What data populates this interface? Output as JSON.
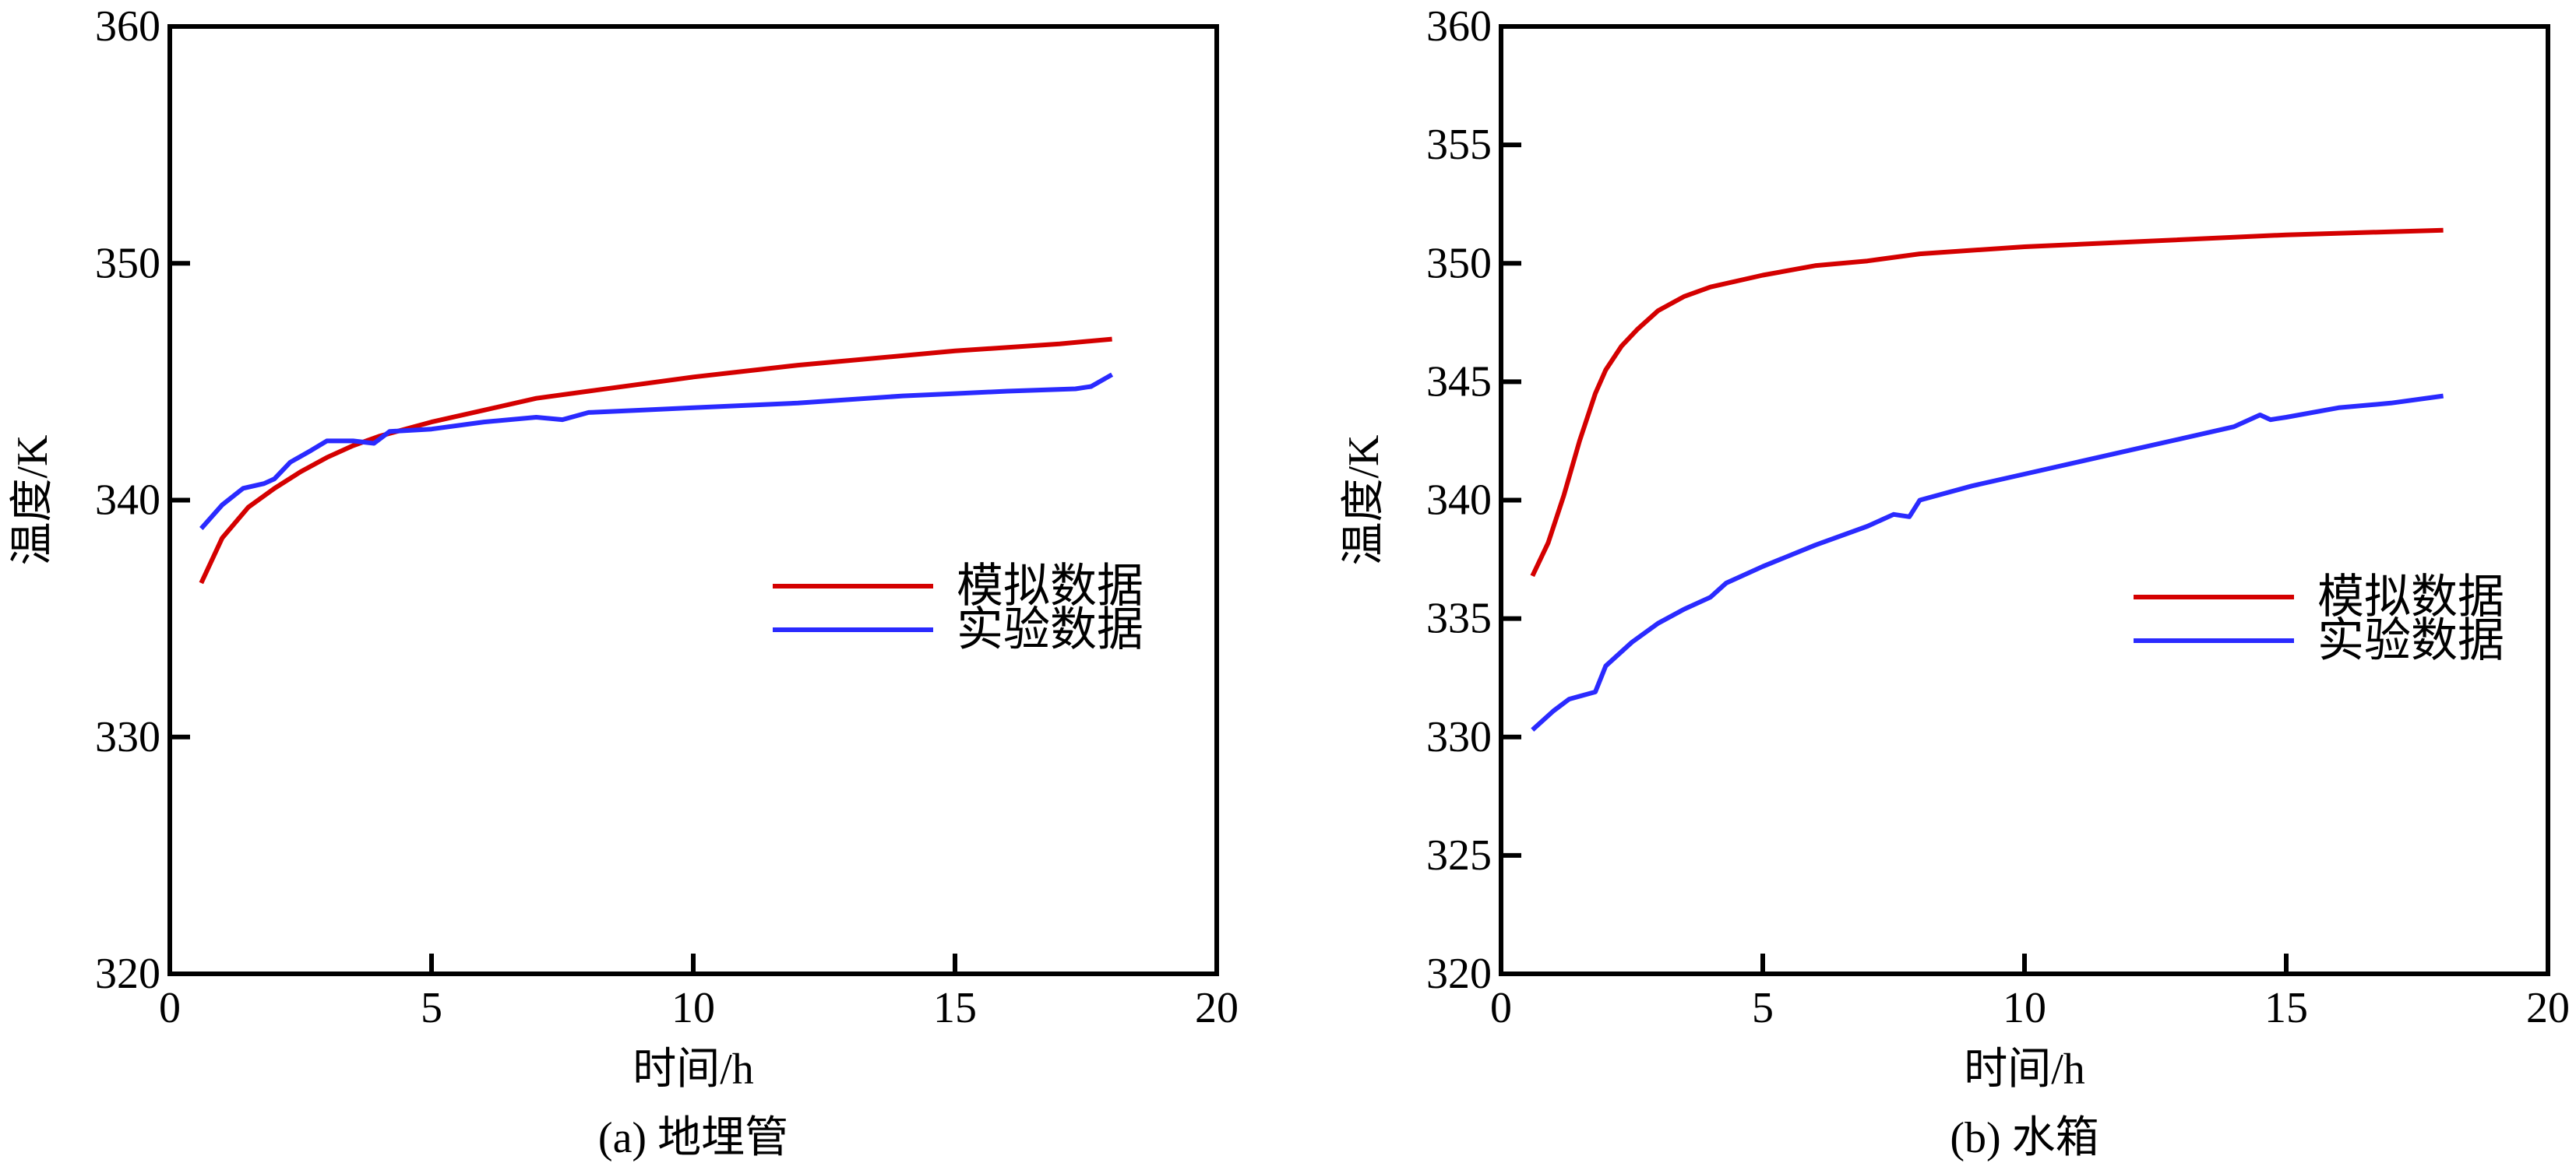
{
  "colors": {
    "simulation": "#d40000",
    "experiment": "#2a2aff",
    "axis": "#000000"
  },
  "chart_data": [
    {
      "type": "line",
      "caption": "(a) 地埋管",
      "xlabel": "时间/h",
      "ylabel": "温度/K",
      "xlim": [
        0,
        20
      ],
      "ylim": [
        320,
        360
      ],
      "xticks": [
        0,
        5,
        10,
        15,
        20
      ],
      "yticks": [
        320,
        330,
        340,
        350,
        360
      ],
      "grid": false,
      "legend": "right-middle",
      "series": [
        {
          "name": "模拟数据",
          "color": "#d40000",
          "x": [
            0.6,
            1,
            1.5,
            2,
            2.5,
            3,
            3.5,
            4,
            5,
            6,
            7,
            8,
            10,
            12,
            13,
            15,
            17,
            18
          ],
          "y": [
            336.5,
            338.4,
            339.7,
            340.5,
            341.2,
            341.8,
            342.3,
            342.7,
            343.3,
            343.8,
            344.3,
            344.6,
            345.2,
            345.7,
            345.9,
            346.3,
            346.6,
            346.8
          ]
        },
        {
          "name": "实验数据",
          "color": "#2a2aff",
          "x": [
            0.6,
            1,
            1.4,
            1.8,
            2,
            2.3,
            2.7,
            3,
            3.5,
            3.9,
            4.2,
            5,
            6,
            7,
            7.5,
            8,
            9,
            10,
            12,
            14,
            15,
            16,
            17.3,
            17.6,
            18
          ],
          "y": [
            338.8,
            339.8,
            340.5,
            340.7,
            340.9,
            341.6,
            342.1,
            342.5,
            342.5,
            342.4,
            342.9,
            343.0,
            343.3,
            343.5,
            343.4,
            343.7,
            343.8,
            343.9,
            344.1,
            344.4,
            344.5,
            344.6,
            344.7,
            344.8,
            345.3
          ]
        }
      ]
    },
    {
      "type": "line",
      "caption": "(b) 水箱",
      "xlabel": "时间/h",
      "ylabel": "温度/K",
      "xlim": [
        0,
        20
      ],
      "ylim": [
        320,
        360
      ],
      "xticks": [
        0,
        5,
        10,
        15,
        20
      ],
      "yticks": [
        320,
        325,
        330,
        335,
        340,
        345,
        350,
        355,
        360
      ],
      "grid": false,
      "legend": "right-middle",
      "series": [
        {
          "name": "模拟数据",
          "color": "#d40000",
          "x": [
            0.6,
            0.9,
            1.2,
            1.5,
            1.8,
            2,
            2.3,
            2.6,
            3,
            3.5,
            4,
            5,
            6,
            7,
            8,
            10,
            12,
            15,
            18
          ],
          "y": [
            336.8,
            338.2,
            340.2,
            342.5,
            344.5,
            345.5,
            346.5,
            347.2,
            348.0,
            348.6,
            349.0,
            349.5,
            349.9,
            350.1,
            350.4,
            350.7,
            350.9,
            351.2,
            351.4
          ]
        },
        {
          "name": "实验数据",
          "color": "#2a2aff",
          "x": [
            0.6,
            1,
            1.3,
            1.8,
            2,
            2.5,
            3,
            3.5,
            4,
            4.3,
            5,
            6,
            7,
            7.5,
            7.8,
            8,
            9,
            10,
            11,
            12,
            13,
            14,
            14.5,
            14.7,
            15,
            16,
            17,
            18
          ],
          "y": [
            330.3,
            331.1,
            331.6,
            331.9,
            333.0,
            334.0,
            334.8,
            335.4,
            335.9,
            336.5,
            337.2,
            338.1,
            338.9,
            339.4,
            339.3,
            340.0,
            340.6,
            341.1,
            341.6,
            342.1,
            342.6,
            343.1,
            343.6,
            343.4,
            343.5,
            343.9,
            344.1,
            344.4
          ]
        }
      ]
    }
  ]
}
